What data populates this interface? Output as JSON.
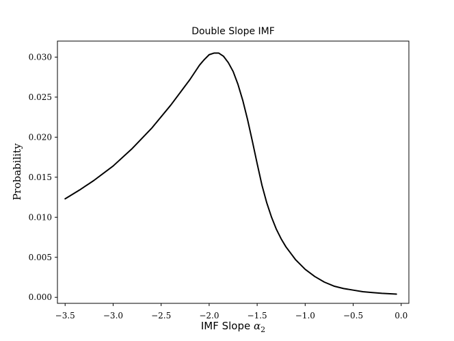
{
  "chart_data": {
    "type": "line",
    "title": "Double Slope IMF",
    "xlabel_text": "IMF Slope ",
    "xlabel_symbol": "α",
    "xlabel_subscript": "2",
    "ylabel": "Probability",
    "xlim": [
      -3.58,
      0.08
    ],
    "ylim": [
      -0.00075,
      0.032
    ],
    "x_ticks": [
      -3.5,
      -3.0,
      -2.5,
      -2.0,
      -1.5,
      -1.0,
      -0.5,
      0.0
    ],
    "x_tick_labels": [
      "−3.5",
      "−3.0",
      "−2.5",
      "−2.0",
      "−1.5",
      "−1.0",
      "−0.5",
      "0.0"
    ],
    "y_ticks": [
      0.0,
      0.005,
      0.01,
      0.015,
      0.02,
      0.025,
      0.03
    ],
    "y_tick_labels": [
      "0.000",
      "0.005",
      "0.010",
      "0.015",
      "0.020",
      "0.025",
      "0.030"
    ],
    "grid": false,
    "series": [
      {
        "color": "#000000",
        "x": [
          -3.5,
          -3.35,
          -3.2,
          -3.0,
          -2.8,
          -2.6,
          -2.4,
          -2.3,
          -2.2,
          -2.1,
          -2.05,
          -2.0,
          -1.95,
          -1.9,
          -1.85,
          -1.8,
          -1.75,
          -1.7,
          -1.65,
          -1.6,
          -1.55,
          -1.5,
          -1.45,
          -1.4,
          -1.35,
          -1.3,
          -1.25,
          -1.2,
          -1.1,
          -1.0,
          -0.9,
          -0.8,
          -0.7,
          -0.6,
          -0.5,
          -0.4,
          -0.3,
          -0.2,
          -0.05
        ],
        "y": [
          0.0123,
          0.0134,
          0.0146,
          0.0164,
          0.0186,
          0.0211,
          0.024,
          0.0256,
          0.0272,
          0.029,
          0.0297,
          0.0303,
          0.0305,
          0.0305,
          0.0301,
          0.0293,
          0.0282,
          0.0266,
          0.0246,
          0.0222,
          0.0195,
          0.0167,
          0.014,
          0.0118,
          0.01,
          0.0085,
          0.0073,
          0.0063,
          0.0047,
          0.0035,
          0.0026,
          0.0019,
          0.0014,
          0.0011,
          0.0009,
          0.0007,
          0.0006,
          0.0005,
          0.0004
        ]
      }
    ]
  }
}
